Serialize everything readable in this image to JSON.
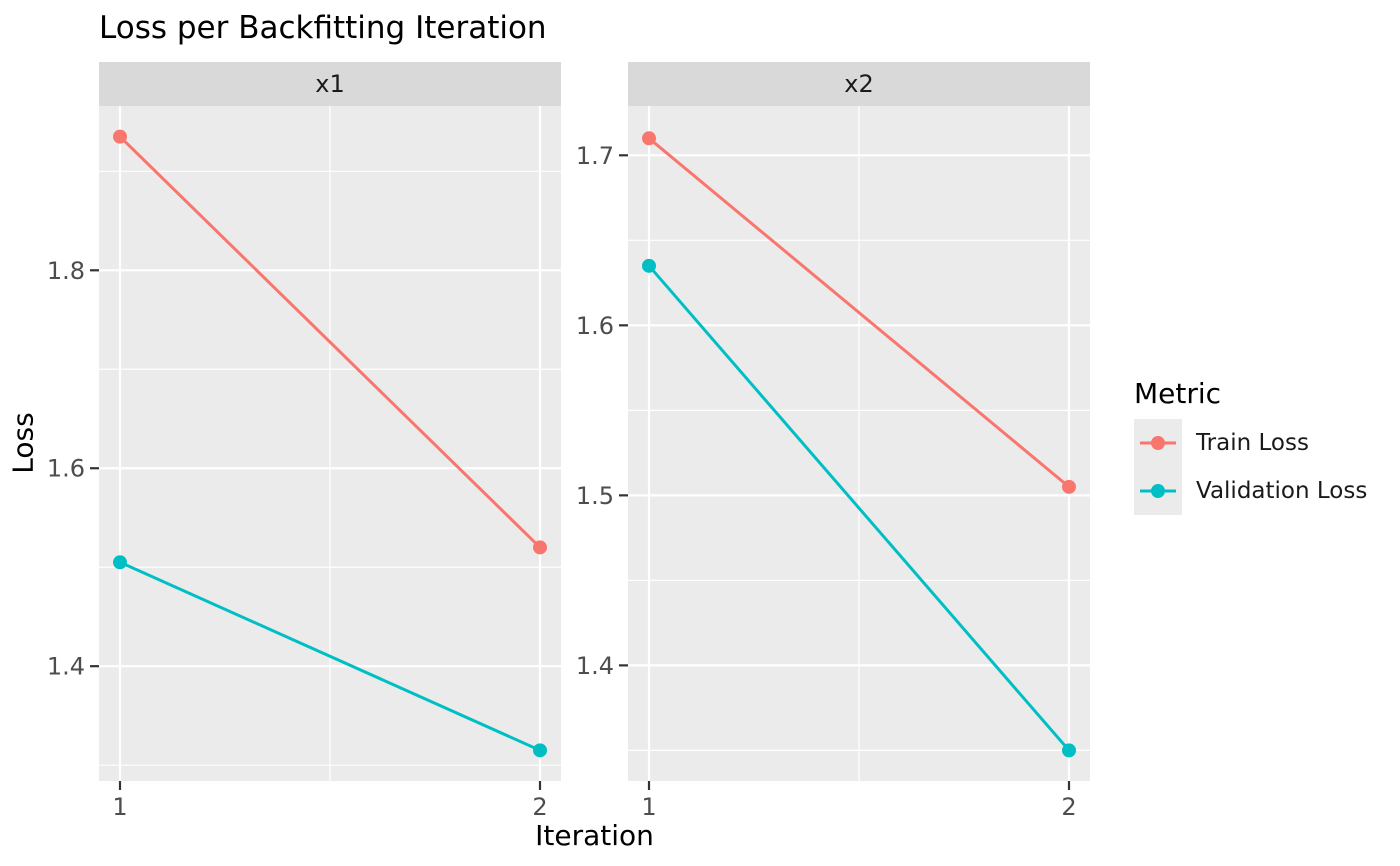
{
  "title": "Loss per Backfitting Iteration",
  "colors": {
    "background": "#FFFFFF",
    "train": "#F8766D",
    "validation": "#00BFC4",
    "panel_bg": "#EBEBEB",
    "strip_bg": "#D9D9D9",
    "grid": "#FFFFFF",
    "tick_mark": "#333333",
    "tick_label": "#4D4D4D",
    "legend_key_bg": "#EBEBEB"
  },
  "chart_data": {
    "type": "line",
    "title": "Loss per Backfitting Iteration",
    "xlabel": "Iteration",
    "ylabel": "Loss",
    "legend_title": "Metric",
    "legend_position": "right",
    "grid": true,
    "x": [
      1,
      2
    ],
    "xlim": [
      0.95,
      2.05
    ],
    "xticks": [
      1,
      2
    ],
    "x_minor": [
      1.5
    ],
    "facets": [
      {
        "label": "x1",
        "series": [
          {
            "name": "Train Loss",
            "color": "#F8766D",
            "values": [
              1.935,
              1.52
            ]
          },
          {
            "name": "Validation Loss",
            "color": "#00BFC4",
            "values": [
              1.505,
              1.315
            ]
          }
        ],
        "ylim": [
          1.284,
          1.966
        ],
        "yticks": [
          1.4,
          1.6,
          1.8
        ],
        "y_minor": [
          1.3,
          1.5,
          1.7,
          1.9
        ]
      },
      {
        "label": "x2",
        "series": [
          {
            "name": "Train Loss",
            "color": "#F8766D",
            "values": [
              1.71,
              1.505
            ]
          },
          {
            "name": "Validation Loss",
            "color": "#00BFC4",
            "values": [
              1.635,
              1.35
            ]
          }
        ],
        "ylim": [
          1.332,
          1.729
        ],
        "yticks": [
          1.4,
          1.5,
          1.6,
          1.7
        ],
        "y_minor": [
          1.35,
          1.45,
          1.55,
          1.65
        ]
      }
    ]
  }
}
